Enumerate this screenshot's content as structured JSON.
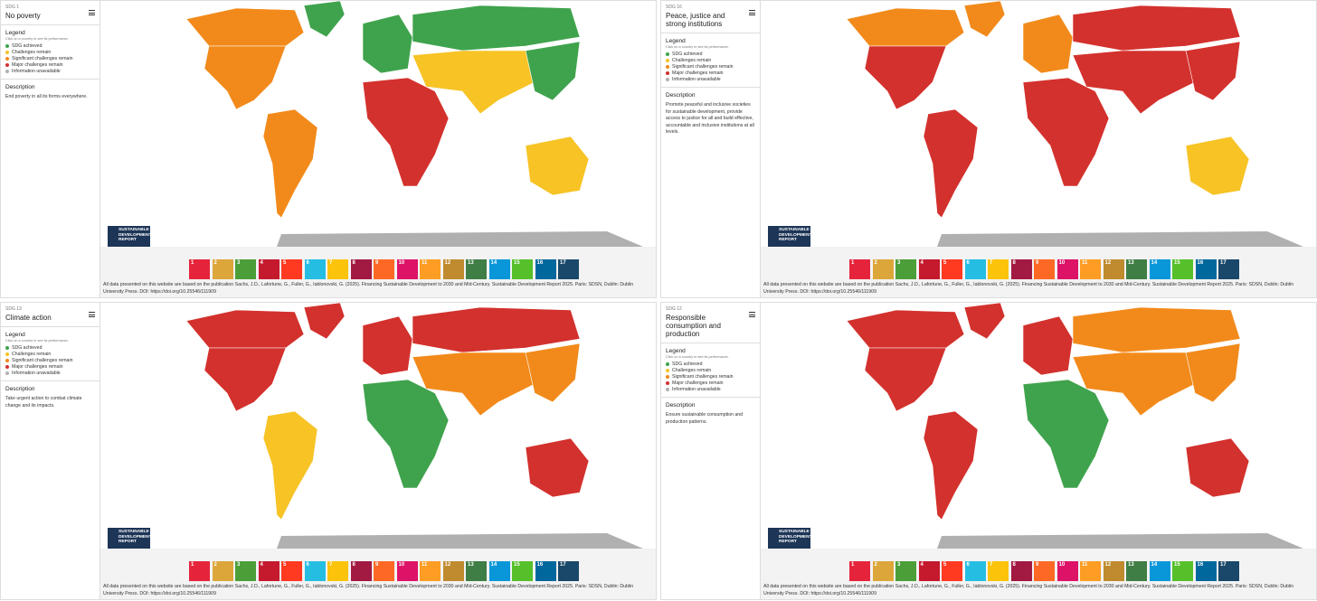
{
  "panels": [
    {
      "sdg_label": "SDG 1",
      "title": "No poverty",
      "description_text": "End poverty in all its forms everywhere."
    },
    {
      "sdg_label": "SDG 16",
      "title": "Peace, justice and strong institutions",
      "description_text": "Promote peaceful and inclusive societies for sustainable development, provide access to justice for all and build effective, accountable and inclusive institutions at all levels."
    },
    {
      "sdg_label": "SDG 13",
      "title": "Climate action",
      "description_text": "Take urgent action to combat climate change and its impacts."
    },
    {
      "sdg_label": "SDG 12",
      "title": "Responsible consumption and production",
      "description_text": "Ensure sustainable consumption and production patterns."
    }
  ],
  "legend": {
    "heading": "Legend",
    "hint": "Click on a country to see its performance.",
    "items": [
      "SDG achieved",
      "Challenges remain",
      "Significant challenges remain",
      "Major challenges remain",
      "Information unavailable"
    ]
  },
  "description_heading": "Description",
  "logo": [
    "SUSTAINABLE",
    "DEVELOPMENT",
    "REPORT"
  ],
  "goal_icons": [
    "1",
    "2",
    "3",
    "4",
    "5",
    "6",
    "7",
    "8",
    "9",
    "10",
    "11",
    "12",
    "13",
    "14",
    "15",
    "16",
    "17"
  ],
  "footer": "All data presented on this website are based on the publication Sachs, J.D., Lafortune, G., Fuller, G., Iablonovski, G. (2025). Financing Sustainable Development to 2030 and Mid-Century. Sustainable Development Report 2025. Paris: SDSN, Dublin: Dublin University Press. DOI: https://doi.org/10.25546/111909"
}
